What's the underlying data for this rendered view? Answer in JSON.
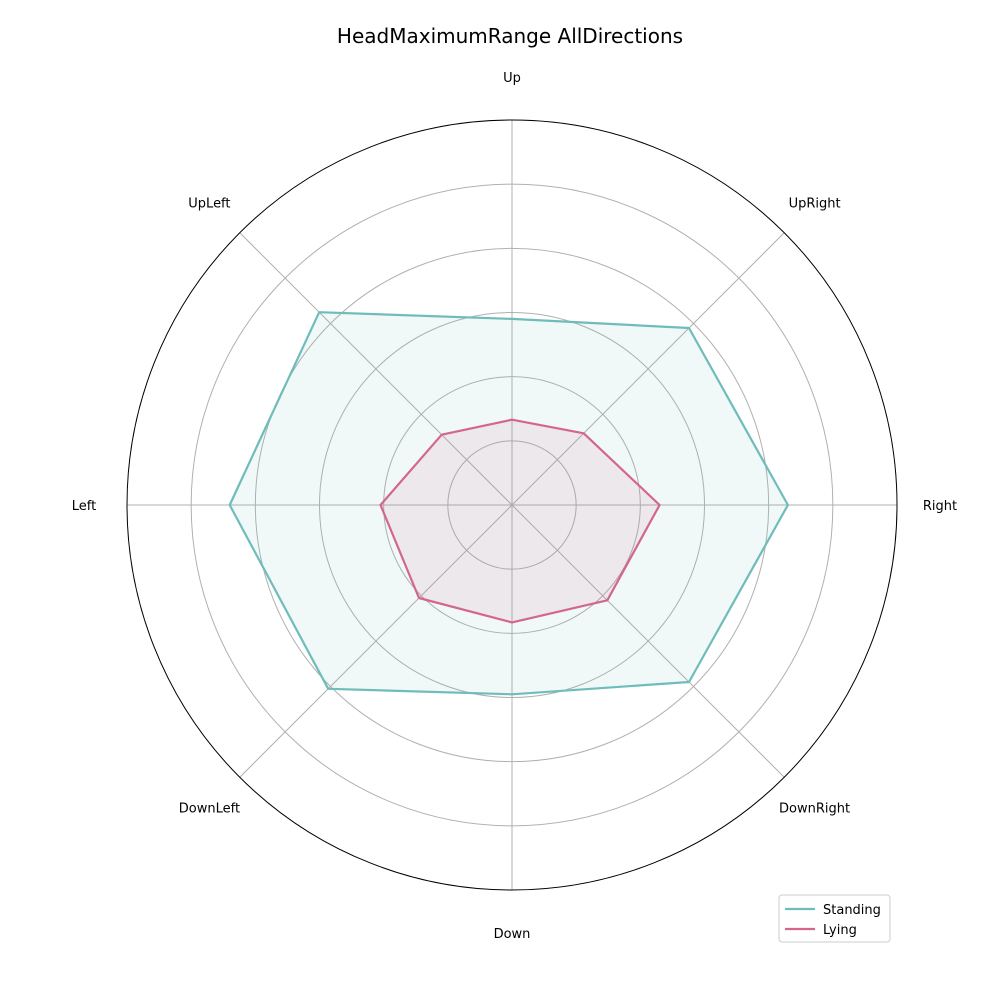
{
  "chart_data": {
    "type": "radar",
    "title": "HeadMaximumRange AllDirections",
    "categories": [
      "Up",
      "UpRight",
      "Right",
      "DownRight",
      "Down",
      "DownLeft",
      "Left",
      "UpLeft"
    ],
    "series": [
      {
        "name": "Standing",
        "color": "#6fbcbb",
        "values": [
          2.9,
          3.9,
          4.3,
          3.9,
          2.95,
          4.05,
          4.4,
          4.25
        ]
      },
      {
        "name": "Lying",
        "color": "#d4668e",
        "values": [
          1.33,
          1.58,
          2.3,
          2.1,
          1.83,
          2.05,
          2.05,
          1.55
        ]
      }
    ],
    "rlim": [
      0,
      6
    ],
    "rticks": [
      1,
      2,
      3,
      4,
      5
    ],
    "grid": true,
    "legend_position": "bottom-right"
  }
}
